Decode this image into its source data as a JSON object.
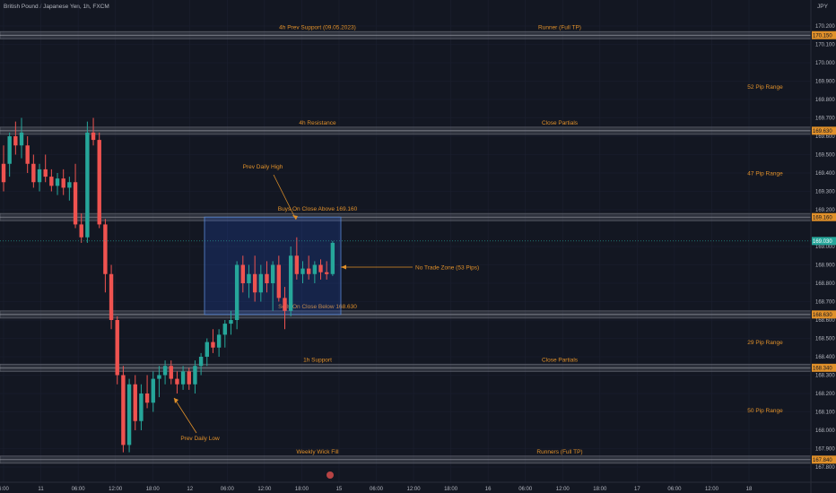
{
  "header": {
    "symbol_title": "British Pound / Japanese Yen, 1h, FXCM",
    "currency": "JPY"
  },
  "colors": {
    "background": "#131722",
    "bull": "#26a69a",
    "bear": "#ef5350",
    "annotation": "#e0902a",
    "axis_text": "#b2b5be",
    "level_band": "#5d606b",
    "zone_fill": "#1c3a5e",
    "zone_border": "#2962ff",
    "price_tag": "#e0902a",
    "current_tag": "#26a69a"
  },
  "chart_data": {
    "type": "candlestick",
    "y_axis": {
      "range": [
        167.8,
        170.2
      ],
      "ticks": [
        "170.200",
        "170.100",
        "170.000",
        "169.900",
        "169.800",
        "169.700",
        "169.600",
        "169.500",
        "169.400",
        "169.300",
        "169.200",
        "169.000",
        "168.900",
        "168.800",
        "168.700",
        "168.600",
        "168.500",
        "168.400",
        "168.300",
        "168.200",
        "168.100",
        "168.000",
        "167.900",
        "167.800"
      ]
    },
    "x_axis": {
      "ticks": [
        "6:00",
        "11",
        "06:00",
        "12:00",
        "18:00",
        "12",
        "06:00",
        "12:00",
        "18:00",
        "15",
        "06:00",
        "12:00",
        "18:00",
        "16",
        "06:00",
        "12:00",
        "18:00",
        "17",
        "06:00",
        "12:00",
        "18"
      ]
    },
    "levels": [
      {
        "price": 170.15,
        "tag": "170.150",
        "left_text": "4h Prev Support (09.05.2023)",
        "right_text": "Runner (Full TP)"
      },
      {
        "price": 169.63,
        "tag": "169.630",
        "left_text": "4h Resistance",
        "right_text": "Close Partials"
      },
      {
        "price": 169.16,
        "tag": "169.160",
        "left_text": "Buys On Close Above 169.160",
        "right_text": ""
      },
      {
        "price": 168.63,
        "tag": "168.630",
        "left_text": "Sells On Close Below 168.630",
        "right_text": ""
      },
      {
        "price": 168.34,
        "tag": "168.340",
        "left_text": "1h Support",
        "right_text": "Close Partials"
      },
      {
        "price": 167.84,
        "tag": "167.840",
        "left_text": "Weekly Wick Fill",
        "right_text": "Runners (Full TP)"
      }
    ],
    "range_labels": [
      {
        "price": 169.87,
        "text": "52 Pip Range"
      },
      {
        "price": 169.4,
        "text": "47 Pip Range"
      },
      {
        "price": 168.48,
        "text": "29 Pip Range"
      },
      {
        "price": 168.11,
        "text": "50 Pip Range"
      }
    ],
    "annotations": {
      "prev_daily_high": "Prev Daily High",
      "prev_daily_low": "Prev Daily Low",
      "no_trade_zone": "No Trade Zone (53 Pips)"
    },
    "no_trade_zone": {
      "high": 169.16,
      "low": 168.63
    },
    "current_price": {
      "value": 169.03,
      "tag": "169.030"
    },
    "candles": [
      [
        169.45,
        169.55,
        169.3,
        169.35
      ],
      [
        169.45,
        169.62,
        169.38,
        169.6
      ],
      [
        169.6,
        169.68,
        169.5,
        169.55
      ],
      [
        169.55,
        169.7,
        169.48,
        169.62
      ],
      [
        169.55,
        169.6,
        169.4,
        169.45
      ],
      [
        169.45,
        169.5,
        169.32,
        169.35
      ],
      [
        169.35,
        169.45,
        169.3,
        169.42
      ],
      [
        169.42,
        169.5,
        169.35,
        169.38
      ],
      [
        169.38,
        169.42,
        169.3,
        169.33
      ],
      [
        169.33,
        169.4,
        169.28,
        169.37
      ],
      [
        169.37,
        169.42,
        169.28,
        169.32
      ],
      [
        169.32,
        169.38,
        169.25,
        169.35
      ],
      [
        169.35,
        169.45,
        169.1,
        169.12
      ],
      [
        169.12,
        169.18,
        169.02,
        169.05
      ],
      [
        169.05,
        169.68,
        169.02,
        169.62
      ],
      [
        169.62,
        169.7,
        169.55,
        169.58
      ],
      [
        169.58,
        169.62,
        169.1,
        169.12
      ],
      [
        169.12,
        169.15,
        168.75,
        168.85
      ],
      [
        168.85,
        168.9,
        168.55,
        168.6
      ],
      [
        168.6,
        168.62,
        168.25,
        168.3
      ],
      [
        168.3,
        168.35,
        167.88,
        167.92
      ],
      [
        167.92,
        168.28,
        167.88,
        168.25
      ],
      [
        168.25,
        168.3,
        168.0,
        168.05
      ],
      [
        168.05,
        168.25,
        168.0,
        168.2
      ],
      [
        168.2,
        168.3,
        168.12,
        168.15
      ],
      [
        168.15,
        168.32,
        168.1,
        168.28
      ],
      [
        168.28,
        168.35,
        168.18,
        168.3
      ],
      [
        168.3,
        168.38,
        168.25,
        168.35
      ],
      [
        168.35,
        168.38,
        168.25,
        168.28
      ],
      [
        168.28,
        168.32,
        168.2,
        168.25
      ],
      [
        168.25,
        168.35,
        168.22,
        168.32
      ],
      [
        168.32,
        168.34,
        168.22,
        168.25
      ],
      [
        168.25,
        168.38,
        168.2,
        168.35
      ],
      [
        168.35,
        168.42,
        168.3,
        168.4
      ],
      [
        168.4,
        168.5,
        168.35,
        168.48
      ],
      [
        168.48,
        168.55,
        168.42,
        168.45
      ],
      [
        168.45,
        168.55,
        168.4,
        168.52
      ],
      [
        168.52,
        168.6,
        168.45,
        168.58
      ],
      [
        168.58,
        168.65,
        168.52,
        168.6
      ],
      [
        168.6,
        168.92,
        168.55,
        168.9
      ],
      [
        168.9,
        168.95,
        168.75,
        168.8
      ],
      [
        168.8,
        168.9,
        168.72,
        168.85
      ],
      [
        168.85,
        168.95,
        168.7,
        168.75
      ],
      [
        168.75,
        168.9,
        168.7,
        168.85
      ],
      [
        168.85,
        168.92,
        168.75,
        168.8
      ],
      [
        168.8,
        168.92,
        168.65,
        168.9
      ],
      [
        168.9,
        168.95,
        168.7,
        168.72
      ],
      [
        168.72,
        168.78,
        168.55,
        168.65
      ],
      [
        168.65,
        169.0,
        168.62,
        168.95
      ],
      [
        168.95,
        169.05,
        168.82,
        168.85
      ],
      [
        168.85,
        168.92,
        168.8,
        168.88
      ],
      [
        168.88,
        168.95,
        168.82,
        168.85
      ],
      [
        168.85,
        168.92,
        168.8,
        168.9
      ],
      [
        168.9,
        168.93,
        168.82,
        168.86
      ],
      [
        168.86,
        168.92,
        168.82,
        168.85
      ],
      [
        168.85,
        169.03,
        168.84,
        169.02
      ]
    ]
  }
}
